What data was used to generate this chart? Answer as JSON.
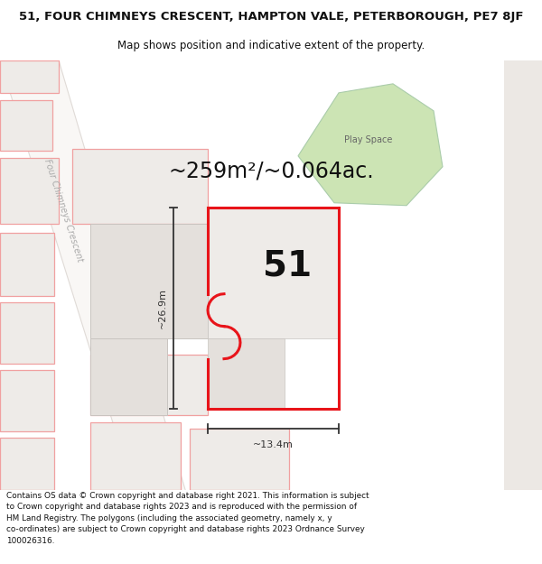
{
  "title_line1": "51, FOUR CHIMNEYS CRESCENT, HAMPTON VALE, PETERBOROUGH, PE7 8JF",
  "title_line2": "Map shows position and indicative extent of the property.",
  "area_text": "~259m²/~0.064ac.",
  "number_label": "51",
  "width_label": "~13.4m",
  "height_label": "~26.9m",
  "play_space_label": "Play Space",
  "footer_text": "Contains OS data © Crown copyright and database right 2021. This information is subject to Crown copyright and database rights 2023 and is reproduced with the permission of HM Land Registry. The polygons (including the associated geometry, namely x, y co-ordinates) are subject to Crown copyright and database rights 2023 Ordnance Survey 100026316.",
  "bg_white": "#ffffff",
  "map_bg": "#f7f3f0",
  "building_fill_light": "#eeebe8",
  "building_fill_mid": "#e4e0dc",
  "building_outline_gray": "#c8c4c0",
  "property_red": "#e8141a",
  "pink_outline": "#f0a0a0",
  "green_fill": "#cce4b4",
  "green_outline": "#aaccaa",
  "road_label_color": "#aaaaaa",
  "dim_color": "#333333",
  "text_dark": "#111111",
  "road_fill": "#f2eeeb",
  "road_stripe": "#e0dbd7",
  "right_strip_color": "#ece8e4",
  "title_size": 9.5,
  "subtitle_size": 8.5,
  "footer_size": 6.4,
  "area_size": 17,
  "num51_size": 28,
  "dim_label_size": 8,
  "road_label_size": 7,
  "play_label_size": 7
}
